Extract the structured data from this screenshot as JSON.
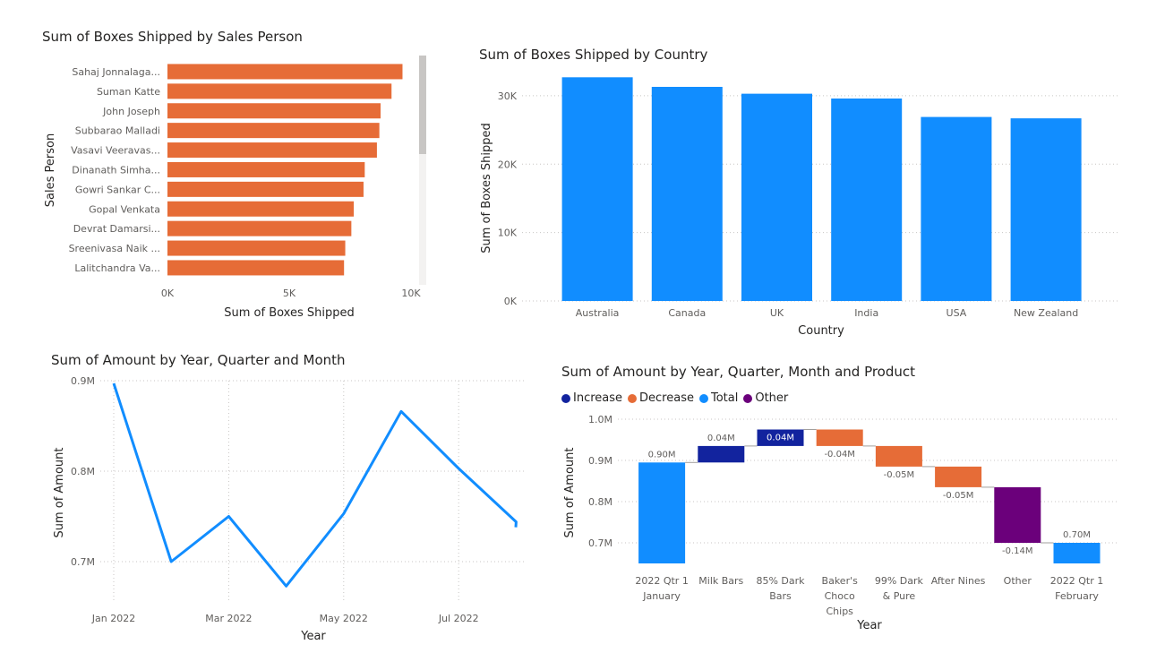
{
  "colors": {
    "orange": "#E66C37",
    "blue": "#118DFF",
    "line": "#118DFF",
    "increase": "#12239E",
    "decrease": "#E66C37",
    "total": "#118DFF",
    "other": "#6B007B",
    "scrollbar": "#c8c6c4"
  },
  "chart_data": [
    {
      "type": "bar",
      "orientation": "horizontal",
      "title": "Sum of Boxes Shipped by Sales Person",
      "xlabel": "Sum of Boxes Shipped",
      "ylabel": "Sales Person",
      "xlim": [
        0,
        10000
      ],
      "xticks": [
        "0K",
        "5K",
        "10K"
      ],
      "categories": [
        "Sahaj Jonnalaga...",
        "Suman Katte",
        "John Joseph",
        "Subbarao Malladi",
        "Vasavi Veeravas...",
        "Dinanath Simha...",
        "Gowri Sankar C...",
        "Gopal Venkata",
        "Devrat Damarsi...",
        "Sreenivasa Naik ...",
        "Lalitchandra Va..."
      ],
      "values": [
        9650,
        9200,
        8750,
        8700,
        8600,
        8100,
        8050,
        7650,
        7550,
        7300,
        7250
      ]
    },
    {
      "type": "bar",
      "title": "Sum of Boxes Shipped by Country",
      "xlabel": "Country",
      "ylabel": "Sum of Boxes Shipped",
      "ylim": [
        0,
        33000
      ],
      "yticks": [
        "0K",
        "10K",
        "20K",
        "30K"
      ],
      "categories": [
        "Australia",
        "Canada",
        "UK",
        "India",
        "USA",
        "New Zealand"
      ],
      "values": [
        32700,
        31300,
        30300,
        29600,
        26900,
        26700
      ]
    },
    {
      "type": "line",
      "title": "Sum of Amount by Year, Quarter and Month",
      "xlabel": "Year",
      "ylabel": "Sum of Amount",
      "yticks": [
        "0.7M",
        "0.8M",
        "0.9M"
      ],
      "xticks": [
        "Jan 2022",
        "Mar 2022",
        "May 2022",
        "Jul 2022"
      ],
      "x": [
        "Jan 2022",
        "Feb 2022",
        "Mar 2022",
        "Apr 2022",
        "May 2022",
        "Jun 2022",
        "Jul 2022",
        "Aug 2022"
      ],
      "values": [
        0.897,
        0.7,
        0.75,
        0.673,
        0.753,
        0.866,
        0.803,
        0.744
      ]
    },
    {
      "type": "waterfall",
      "title": "Sum of Amount by Year, Quarter, Month and Product",
      "xlabel": "Year",
      "ylabel": "Sum of Amount",
      "ylim": [
        0.65,
        1.0
      ],
      "yticks": [
        "0.7M",
        "0.8M",
        "0.9M",
        "1.0M"
      ],
      "legend": [
        {
          "label": "Increase",
          "color": "#12239E"
        },
        {
          "label": "Decrease",
          "color": "#E66C37"
        },
        {
          "label": "Total",
          "color": "#118DFF"
        },
        {
          "label": "Other",
          "color": "#6B007B"
        }
      ],
      "steps": [
        {
          "label": [
            "2022 Qtr 1",
            "January"
          ],
          "kind": "total",
          "value": 0.895,
          "text": "0.90M"
        },
        {
          "label": [
            "Milk Bars"
          ],
          "kind": "increase",
          "value": 0.04,
          "text": "0.04M"
        },
        {
          "label": [
            "85% Dark",
            "Bars"
          ],
          "kind": "increase",
          "value": 0.04,
          "text": "0.04M"
        },
        {
          "label": [
            "Baker's",
            "Choco",
            "Chips"
          ],
          "kind": "decrease",
          "value": -0.04,
          "text": "-0.04M"
        },
        {
          "label": [
            "99% Dark",
            "& Pure"
          ],
          "kind": "decrease",
          "value": -0.05,
          "text": "-0.05M"
        },
        {
          "label": [
            "After Nines"
          ],
          "kind": "decrease",
          "value": -0.05,
          "text": "-0.05M"
        },
        {
          "label": [
            "Other"
          ],
          "kind": "other",
          "value": -0.135,
          "text": "-0.14M"
        },
        {
          "label": [
            "2022 Qtr 1",
            "February"
          ],
          "kind": "total",
          "value": 0.7,
          "text": "0.70M"
        }
      ]
    }
  ]
}
